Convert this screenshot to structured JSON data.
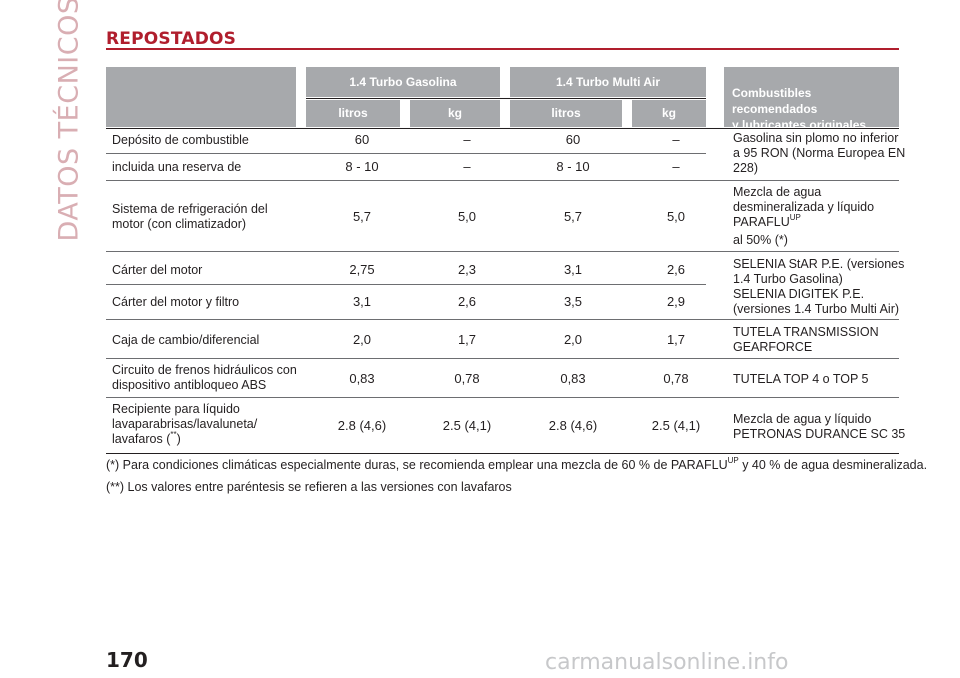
{
  "side_title": "DATOS TÉCNICOS",
  "section_title": "REPOSTADOS",
  "header": {
    "engine_1": "1.4 Turbo Gasolina",
    "engine_2": "1.4 Turbo Multi Air",
    "unit_l1": "litros",
    "unit_kg1": "kg",
    "unit_l2": "litros",
    "unit_kg2": "kg",
    "fuels_line1": "Combustibles recomendados",
    "fuels_line2": "y lubricantes originales"
  },
  "rows": [
    {
      "label": "Depósito de combustible",
      "v": [
        "60",
        "–",
        "60",
        "–"
      ]
    },
    {
      "label": "incluida una reserva de",
      "v": [
        "8 - 10",
        "–",
        "8 - 10",
        "–"
      ]
    },
    {
      "label_l1": "Sistema de refrigeración del",
      "label_l2": "motor (con climatizador)",
      "v": [
        "5,7",
        "5,0",
        "5,7",
        "5,0"
      ]
    },
    {
      "label": "Cárter del motor",
      "v": [
        "2,75",
        "2,3",
        "3,1",
        "2,6"
      ]
    },
    {
      "label": "Cárter del motor y filtro",
      "v": [
        "3,1",
        "2,6",
        "3,5",
        "2,9"
      ]
    },
    {
      "label": "Caja de cambio/diferencial",
      "v": [
        "2,0",
        "1,7",
        "2,0",
        "1,7"
      ]
    },
    {
      "label_l1": "Circuito de frenos hidráulicos con",
      "label_l2": "dispositivo antibloqueo ABS",
      "v": [
        "0,83",
        "0,78",
        "0,83",
        "0,78"
      ]
    },
    {
      "label_l1": "Recipiente para líquido",
      "label_l2": "lavaparabrisas/lavaluneta/",
      "label_l3": "lavafaros (",
      "label_l3_sup": "**",
      "label_l3_end": ")",
      "v": [
        "2.8 (4,6)",
        "2.5 (4,1)",
        "2.8 (4,6)",
        "2.5 (4,1)"
      ]
    }
  ],
  "fuels": {
    "fuel_l1": "Gasolina sin plomo no inferior",
    "fuel_l2": "a 95 RON (Norma Europea EN",
    "fuel_l3": "228)",
    "cool_l1": "Mezcla de agua",
    "cool_l2": "desmineralizada y líquido",
    "cool_l3": "PARAFLU",
    "cool_l3_sup": "UP",
    "cool_l4": "al 50% (*)",
    "oil_l1": "SELENIA StAR P.E. (versiones",
    "oil_l2": "1.4 Turbo Gasolina)",
    "oil_l3": "SELENIA DIGITEK P.E.",
    "oil_l4": "(versiones 1.4 Turbo Multi Air)",
    "gear_l1": "TUTELA TRANSMISSION",
    "gear_l2": "GEARFORCE",
    "brake": "TUTELA TOP 4 o TOP 5",
    "wash_l1": "Mezcla de agua y líquido",
    "wash_l2": "PETRONAS DURANCE SC 35"
  },
  "notes": {
    "note1_a": "(*) Para condiciones climáticas especialmente duras, se recomienda emplear una mezcla de 60 % de PARAFLU",
    "note1_sup": "UP",
    "note1_b": " y 40 % de agua desmineralizada.",
    "note2": "(**) Los valores entre paréntesis se refieren a las versiones con lavafaros"
  },
  "page_number": "170",
  "watermark": "carmanualsonline.info"
}
